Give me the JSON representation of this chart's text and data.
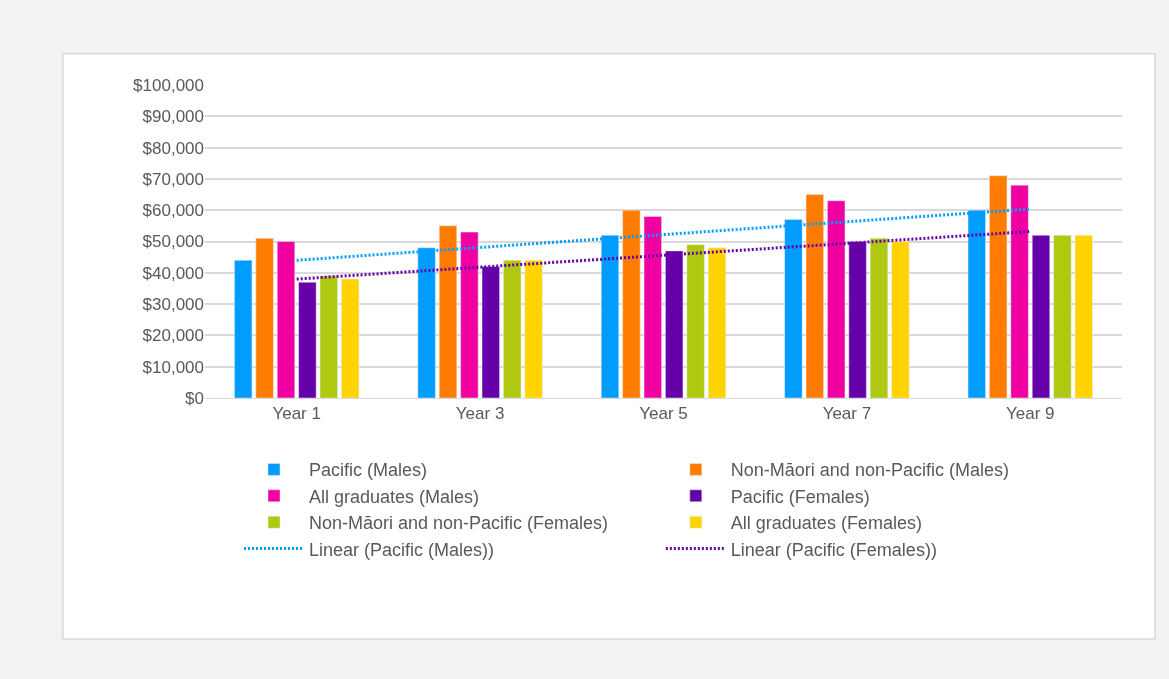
{
  "chart_data": {
    "type": "bar",
    "categories": [
      "Year 1",
      "Year 3",
      "Year 5",
      "Year 7",
      "Year 9"
    ],
    "series": [
      {
        "name": "Pacific (Males)",
        "color": "#009dff",
        "values": [
          44000,
          48000,
          52000,
          57000,
          60000
        ]
      },
      {
        "name": "Non-Māori and non-Pacific (Males)",
        "color": "#ff7c00",
        "values": [
          51000,
          55000,
          60000,
          65000,
          71000
        ]
      },
      {
        "name": "All graduates (Males)",
        "color": "#f000a0",
        "values": [
          50000,
          53000,
          58000,
          63000,
          68000
        ]
      },
      {
        "name": "Pacific (Females)",
        "color": "#6600a8",
        "values": [
          37000,
          42000,
          47000,
          50000,
          52000
        ]
      },
      {
        "name": "Non-Māori and non-Pacific (Females)",
        "color": "#b0c810",
        "values": [
          39000,
          44000,
          49000,
          51000,
          52000
        ]
      },
      {
        "name": "All graduates (Females)",
        "color": "#ffd400",
        "values": [
          38000,
          44000,
          48000,
          50000,
          52000
        ]
      },
      {
        "name": "Linear (Pacific (Males))",
        "type": "line",
        "line_style": "dotted",
        "marker": "none",
        "color": "#009dff",
        "values": [
          44000,
          48100,
          52200,
          56300,
          60400
        ]
      },
      {
        "name": "Linear (Pacific (Females))",
        "type": "line",
        "line_style": "dotted",
        "marker": "none",
        "color": "#6600a8",
        "values": [
          38000,
          41800,
          45600,
          49400,
          53200
        ]
      }
    ],
    "ylim": [
      0,
      100000
    ],
    "yticks": [
      {
        "value": 0,
        "label": "$0"
      },
      {
        "value": 10000,
        "label": "$10,000"
      },
      {
        "value": 20000,
        "label": "$20,000"
      },
      {
        "value": 30000,
        "label": "$30,000"
      },
      {
        "value": 40000,
        "label": "$40,000"
      },
      {
        "value": 50000,
        "label": "$50,000"
      },
      {
        "value": 60000,
        "label": "$60,000"
      },
      {
        "value": 70000,
        "label": "$70,000"
      },
      {
        "value": 80000,
        "label": "$80,000"
      },
      {
        "value": 90000,
        "label": "$90,000"
      },
      {
        "value": 100000,
        "label": "$100,000"
      }
    ],
    "grid": "y",
    "legend": "bottom"
  }
}
